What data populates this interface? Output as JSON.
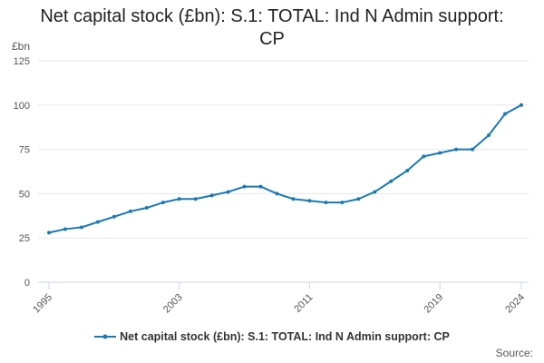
{
  "title": "Net capital stock (£bn): S.1: TOTAL: Ind N Admin support: CP",
  "y_unit": "£bn",
  "source_label": "Source:",
  "colors": {
    "series": "#1a7ab5",
    "grid": "#e6e6e6",
    "axis": "#ccd6eb"
  },
  "chart_data": {
    "type": "line",
    "title": "Net capital stock (£bn): S.1: TOTAL: Ind N Admin support: CP",
    "xlabel": "",
    "ylabel": "£bn",
    "xlim": [
      1995,
      2024
    ],
    "ylim": [
      0,
      125
    ],
    "y_ticks": [
      0,
      25,
      50,
      75,
      100,
      125
    ],
    "x_ticks": [
      1995,
      2003,
      2011,
      2019,
      2024
    ],
    "grid": true,
    "legend": "bottom-center",
    "series": [
      {
        "name": "Net capital stock (£bn): S.1: TOTAL: Ind N Admin support: CP",
        "x": [
          1995,
          1996,
          1997,
          1998,
          1999,
          2000,
          2001,
          2002,
          2003,
          2004,
          2005,
          2006,
          2007,
          2008,
          2009,
          2010,
          2011,
          2012,
          2013,
          2014,
          2015,
          2016,
          2017,
          2018,
          2019,
          2020,
          2021,
          2022,
          2023,
          2024
        ],
        "values": [
          28,
          30,
          31,
          34,
          37,
          40,
          42,
          45,
          47,
          47,
          49,
          51,
          54,
          54,
          50,
          47,
          46,
          45,
          45,
          47,
          51,
          57,
          63,
          71,
          73,
          75,
          75,
          83,
          95,
          100
        ]
      }
    ]
  }
}
